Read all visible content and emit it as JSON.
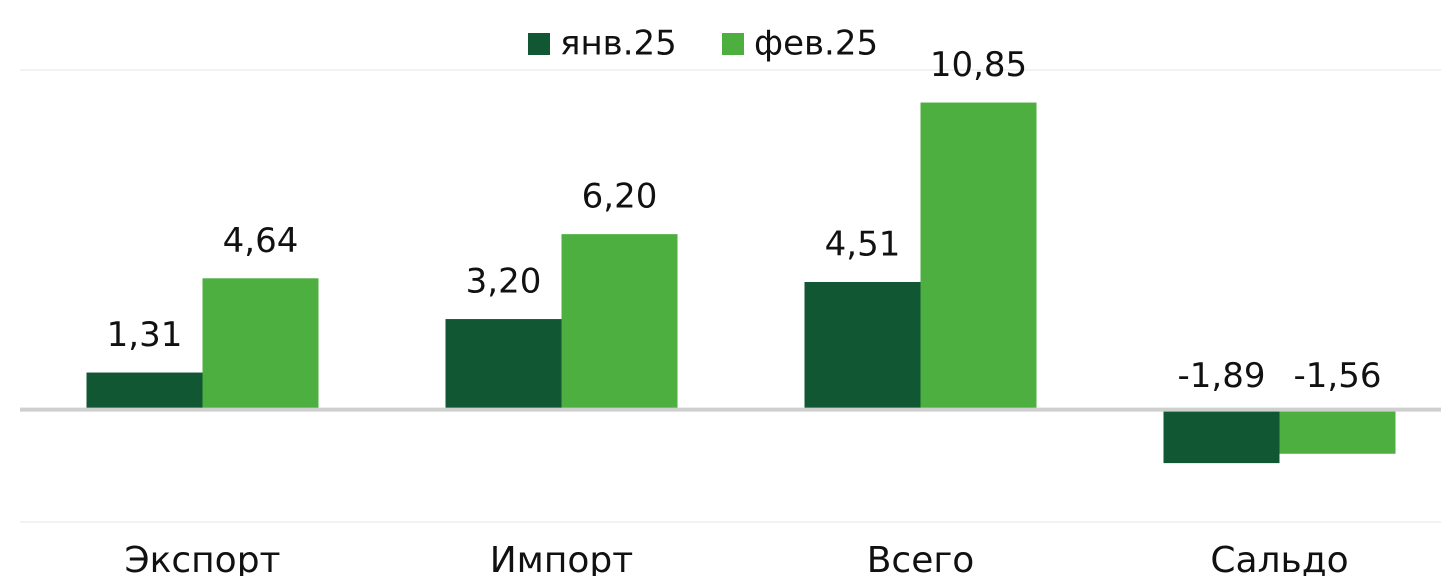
{
  "chart_data": {
    "type": "bar",
    "categories": [
      "Экспорт",
      "Импорт",
      "Всего",
      "Сальдо"
    ],
    "series": [
      {
        "name": "янв.25",
        "color": "#115734",
        "values": [
          1.31,
          3.2,
          4.51,
          -1.89
        ],
        "value_labels": [
          "1,31",
          "3,20",
          "4,51",
          "-1,89"
        ]
      },
      {
        "name": "фев.25",
        "color": "#4caf3f",
        "values": [
          4.64,
          6.2,
          10.85,
          -1.56
        ],
        "value_labels": [
          "4,64",
          "6,20",
          "10,85",
          "-1,56"
        ]
      }
    ],
    "ylim": [
      -3.9,
      12.0
    ],
    "legend": "top"
  }
}
